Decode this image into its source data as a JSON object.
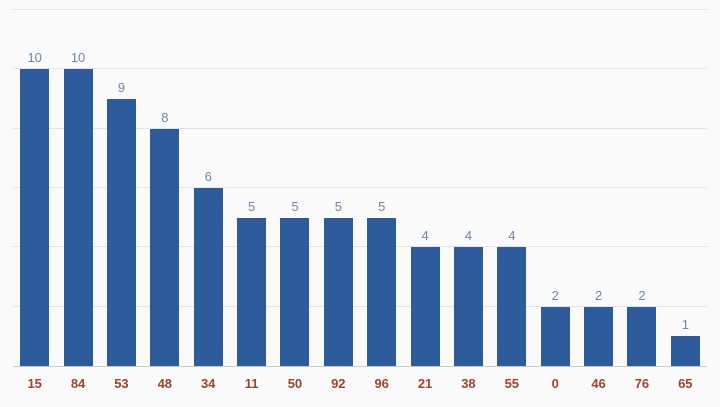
{
  "chart_data": {
    "type": "bar",
    "title": "",
    "xlabel": "",
    "ylabel": "",
    "categories": [
      "15",
      "84",
      "53",
      "48",
      "34",
      "11",
      "50",
      "92",
      "96",
      "21",
      "38",
      "55",
      "0",
      "46",
      "76",
      "65"
    ],
    "values": [
      10,
      10,
      9,
      8,
      6,
      5,
      5,
      5,
      5,
      4,
      4,
      4,
      2,
      2,
      2,
      1
    ],
    "value_labels_shown": true,
    "ylim": [
      0,
      12
    ],
    "grid_step": 2,
    "grid": true,
    "y_tick_labels_shown": false,
    "legend": "none"
  },
  "colors": {
    "background": "#fafafa",
    "bar": "#2e5b9c",
    "value_label": "#6c87a3",
    "category_label": "#a0432e",
    "gridline": "#e3e3e3",
    "baseline": "#cccccc"
  }
}
